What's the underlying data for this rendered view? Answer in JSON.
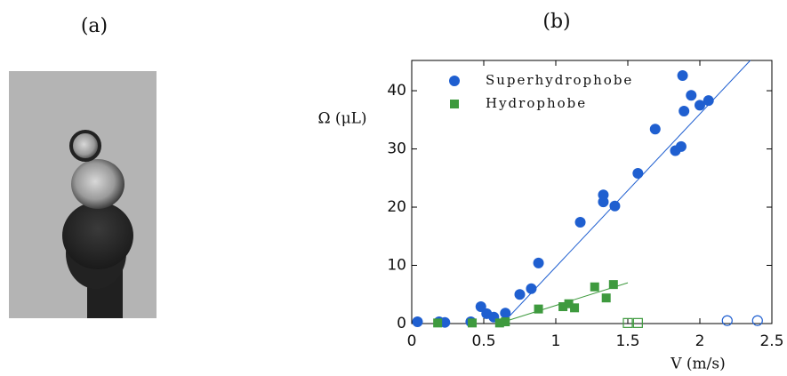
{
  "image_panel": {
    "label": "(a)"
  },
  "chart_data": {
    "type": "scatter",
    "title": "(b)",
    "xlabel": "V (m/s)",
    "ylabel": "Ω (μL)",
    "xlim": [
      0,
      2.5
    ],
    "ylim": [
      0,
      45.2
    ],
    "xticks": [
      0,
      0.5,
      1,
      1.5,
      2,
      2.5
    ],
    "yticks": [
      0,
      10,
      20,
      30,
      40
    ],
    "legend": "upper left",
    "series": [
      {
        "name": "Superhydrophobe",
        "color": "#1f5fd0",
        "marker": "circle",
        "x": [
          0.04,
          0.19,
          0.23,
          0.41,
          0.48,
          0.52,
          0.57,
          0.65,
          0.75,
          0.83,
          0.88,
          1.17,
          1.33,
          1.33,
          1.41,
          1.57,
          1.69,
          1.83,
          1.87,
          1.89,
          1.88,
          1.94,
          2.0,
          2.06,
          2.19,
          2.4
        ],
        "values": [
          0.3,
          0.3,
          0.2,
          0.3,
          2.9,
          1.7,
          1.1,
          1.8,
          5.0,
          6.0,
          10.4,
          17.4,
          20.9,
          22.1,
          20.2,
          25.8,
          33.4,
          29.7,
          30.4,
          36.5,
          42.6,
          39.2,
          37.5,
          38.3,
          0.5,
          0.5
        ],
        "hollow": [
          false,
          false,
          false,
          false,
          false,
          false,
          false,
          false,
          false,
          false,
          false,
          false,
          false,
          false,
          false,
          false,
          false,
          false,
          false,
          false,
          false,
          false,
          false,
          false,
          true,
          true
        ],
        "fit": {
          "x": [
            0.63,
            2.35
          ],
          "values": [
            0,
            45.2
          ]
        }
      },
      {
        "name": "Hydrophobe",
        "color": "#3e9a3e",
        "marker": "square",
        "x": [
          0.18,
          0.42,
          0.61,
          0.65,
          0.88,
          1.05,
          1.09,
          1.13,
          1.27,
          1.35,
          1.4,
          1.5,
          1.57
        ],
        "values": [
          0.1,
          0.1,
          0.1,
          0.3,
          2.5,
          2.9,
          3.4,
          2.7,
          6.3,
          4.4,
          6.7,
          0.1,
          0.1
        ],
        "hollow": [
          false,
          false,
          false,
          false,
          false,
          false,
          false,
          false,
          false,
          false,
          false,
          true,
          true
        ],
        "fit": {
          "x": [
            0.6,
            1.5
          ],
          "values": [
            0,
            7.0
          ]
        }
      }
    ]
  }
}
